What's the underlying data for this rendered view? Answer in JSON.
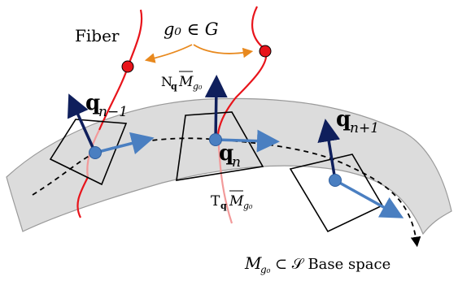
{
  "labels": {
    "fiber": "Fiber",
    "group_element": "g₀ ∈ G",
    "normal_space": {
      "main": "N",
      "sub": "q",
      "M": "M",
      "M_sub": "g₀"
    },
    "tangent_space": {
      "main": "T",
      "sub": "q",
      "M": "M",
      "M_sub": "g₀"
    },
    "q_prev": {
      "q": "q",
      "sub": "n−1"
    },
    "q_curr": {
      "q": "q",
      "sub": "n"
    },
    "q_next": {
      "q": "q",
      "sub": "n+1"
    },
    "base_space": {
      "M": "M",
      "M_sub": "g₀",
      "rest": "⊂ 𝒮  Base space"
    }
  },
  "colors": {
    "fiber_red": "#e8141b",
    "fiber_light_red": "#f29a9a",
    "manifold_fill": "#dcdcdc",
    "manifold_stroke": "#9a9a9a",
    "normal_arrow": "#0f1f5c",
    "tangent_arrow": "#4a7fc1",
    "point": "#4a7fc1",
    "group_arrow": "#e8891e",
    "fiber_point": "#e8141b"
  }
}
